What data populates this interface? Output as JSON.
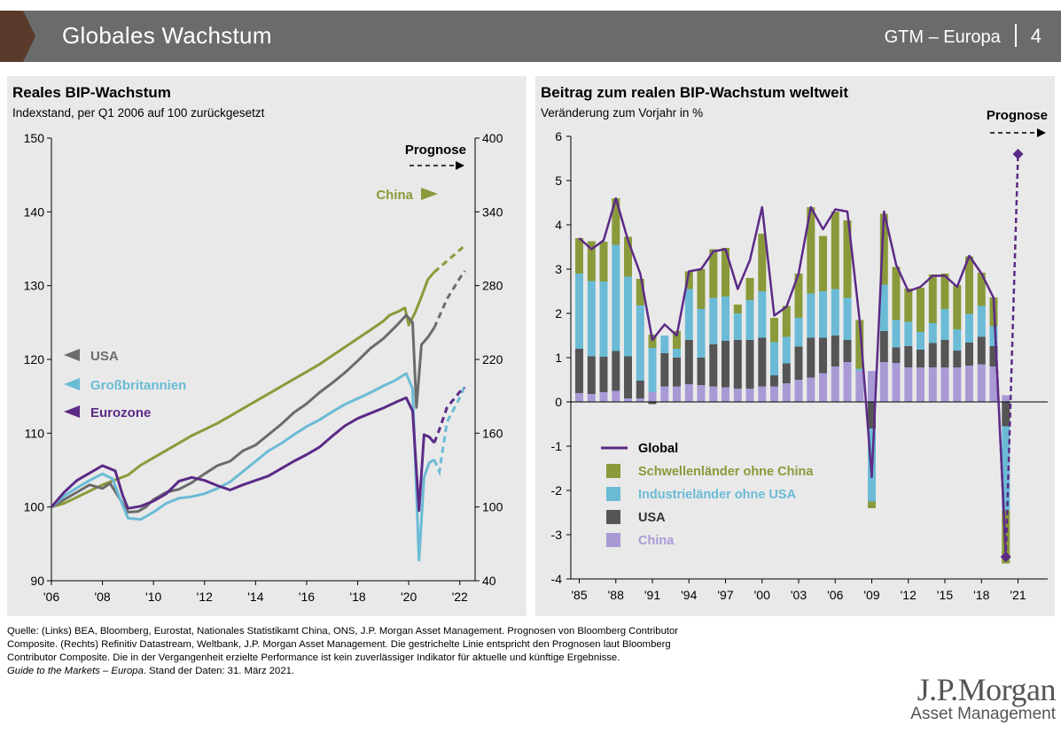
{
  "header": {
    "title": "Globales Wachstum",
    "series": "GTM – Europa",
    "page": "4"
  },
  "left_chart": {
    "title": "Reales BIP-Wachstum",
    "subtitle": "Indexstand, per Q1 2006 auf 100 zurückgesetzt",
    "forecast_label": "Prognose",
    "chart_data": {
      "type": "line",
      "x_ticks": [
        "'06",
        "'08",
        "'10",
        "'12",
        "'14",
        "'16",
        "'18",
        "'20",
        "'22"
      ],
      "x_range": [
        2006,
        2022.6
      ],
      "y_left_range": [
        90,
        150
      ],
      "y_left_ticks": [
        "90",
        "100",
        "110",
        "120",
        "130",
        "140",
        "150"
      ],
      "y_right_range": [
        40,
        400
      ],
      "y_right_ticks": [
        "40",
        "100",
        "160",
        "220",
        "280",
        "340",
        "400"
      ],
      "forecast_start": 2021.0,
      "series": [
        {
          "name": "China",
          "color": "#8a9a3a",
          "axis": "right",
          "label_text": "China",
          "points": [
            [
              2006,
              100
            ],
            [
              2006.5,
              103
            ],
            [
              2007,
              108
            ],
            [
              2007.5,
              113
            ],
            [
              2008,
              118
            ],
            [
              2008.5,
              122
            ],
            [
              2009,
              126
            ],
            [
              2009.5,
              134
            ],
            [
              2010,
              140
            ],
            [
              2010.5,
              146
            ],
            [
              2011,
              152
            ],
            [
              2011.5,
              158
            ],
            [
              2012,
              163
            ],
            [
              2012.5,
              168
            ],
            [
              2013,
              174
            ],
            [
              2013.5,
              180
            ],
            [
              2014,
              186
            ],
            [
              2014.5,
              192
            ],
            [
              2015,
              198
            ],
            [
              2015.5,
              204
            ],
            [
              2016,
              210
            ],
            [
              2016.5,
              216
            ],
            [
              2017,
              223
            ],
            [
              2017.5,
              230
            ],
            [
              2018,
              237
            ],
            [
              2018.5,
              244
            ],
            [
              2019,
              251
            ],
            [
              2019.25,
              256
            ],
            [
              2019.6,
              259
            ],
            [
              2019.85,
              262
            ],
            [
              2020,
              248
            ],
            [
              2020.25,
              258
            ],
            [
              2020.5,
              271
            ],
            [
              2020.75,
              285
            ],
            [
              2021,
              291
            ],
            [
              2021.5,
              300
            ],
            [
              2022,
              309
            ],
            [
              2022.2,
              313
            ]
          ]
        },
        {
          "name": "USA",
          "color": "#6b6b6b",
          "axis": "left",
          "label_text": "USA",
          "points": [
            [
              2006,
              100
            ],
            [
              2006.5,
              101
            ],
            [
              2007,
              102
            ],
            [
              2007.5,
              103
            ],
            [
              2008,
              102.5
            ],
            [
              2008.3,
              103.2
            ],
            [
              2008.7,
              101
            ],
            [
              2009,
              99.3
            ],
            [
              2009.4,
              99.4
            ],
            [
              2009.7,
              100
            ],
            [
              2010,
              101
            ],
            [
              2010.5,
              102
            ],
            [
              2011,
              102.4
            ],
            [
              2011.5,
              103.3
            ],
            [
              2012,
              104.5
            ],
            [
              2012.5,
              105.6
            ],
            [
              2013,
              106.2
            ],
            [
              2013.5,
              107.6
            ],
            [
              2014,
              108.4
            ],
            [
              2014.5,
              109.8
            ],
            [
              2015,
              111.2
            ],
            [
              2015.5,
              112.8
            ],
            [
              2016,
              114
            ],
            [
              2016.5,
              115.5
            ],
            [
              2017,
              116.8
            ],
            [
              2017.5,
              118.2
            ],
            [
              2018,
              119.8
            ],
            [
              2018.5,
              121.5
            ],
            [
              2019,
              122.8
            ],
            [
              2019.5,
              124.5
            ],
            [
              2019.9,
              126
            ],
            [
              2020.15,
              125
            ],
            [
              2020.3,
              113.5
            ],
            [
              2020.5,
              122
            ],
            [
              2020.75,
              123
            ],
            [
              2021,
              124.3
            ],
            [
              2021.5,
              128.2
            ],
            [
              2022,
              131
            ],
            [
              2022.2,
              132
            ]
          ]
        },
        {
          "name": "Großbritannien",
          "color": "#6bbbd6",
          "axis": "left",
          "label_text": "Großbritannien",
          "points": [
            [
              2006,
              100
            ],
            [
              2006.5,
              101.5
            ],
            [
              2007,
              102.6
            ],
            [
              2007.5,
              103.6
            ],
            [
              2008,
              104.5
            ],
            [
              2008.4,
              103.8
            ],
            [
              2008.7,
              101
            ],
            [
              2009,
              98.5
            ],
            [
              2009.5,
              98.3
            ],
            [
              2010,
              99.3
            ],
            [
              2010.5,
              100.5
            ],
            [
              2011,
              101.2
            ],
            [
              2011.5,
              101.4
            ],
            [
              2012,
              101.8
            ],
            [
              2012.5,
              102.5
            ],
            [
              2013,
              103.4
            ],
            [
              2013.5,
              104.8
            ],
            [
              2014,
              106.2
            ],
            [
              2014.5,
              107.6
            ],
            [
              2015,
              108.6
            ],
            [
              2015.5,
              109.8
            ],
            [
              2016,
              110.9
            ],
            [
              2016.5,
              111.8
            ],
            [
              2017,
              112.9
            ],
            [
              2017.5,
              113.9
            ],
            [
              2018,
              114.7
            ],
            [
              2018.5,
              115.5
            ],
            [
              2019,
              116.4
            ],
            [
              2019.5,
              117.2
            ],
            [
              2019.9,
              118.1
            ],
            [
              2020.15,
              116
            ],
            [
              2020.4,
              92.8
            ],
            [
              2020.6,
              104
            ],
            [
              2020.8,
              106
            ],
            [
              2021,
              106.4
            ],
            [
              2021.2,
              104.8
            ],
            [
              2021.5,
              111.5
            ],
            [
              2022,
              114.8
            ],
            [
              2022.2,
              116.5
            ]
          ]
        },
        {
          "name": "Eurozone",
          "color": "#5b2a86",
          "axis": "left",
          "label_text": "Eurozone",
          "points": [
            [
              2006,
              100
            ],
            [
              2006.5,
              102
            ],
            [
              2007,
              103.6
            ],
            [
              2007.5,
              104.6
            ],
            [
              2008,
              105.6
            ],
            [
              2008.5,
              104.9
            ],
            [
              2008.8,
              101.5
            ],
            [
              2009,
              99.8
            ],
            [
              2009.5,
              100.1
            ],
            [
              2010,
              100.8
            ],
            [
              2010.5,
              101.8
            ],
            [
              2011,
              103.5
            ],
            [
              2011.5,
              104
            ],
            [
              2012,
              103.6
            ],
            [
              2012.5,
              102.9
            ],
            [
              2013,
              102.3
            ],
            [
              2013.5,
              103
            ],
            [
              2014,
              103.6
            ],
            [
              2014.5,
              104.2
            ],
            [
              2015,
              105.2
            ],
            [
              2015.5,
              106.2
            ],
            [
              2016,
              107.1
            ],
            [
              2016.5,
              108.1
            ],
            [
              2017,
              109.6
            ],
            [
              2017.5,
              111
            ],
            [
              2018,
              112
            ],
            [
              2018.5,
              112.7
            ],
            [
              2019,
              113.4
            ],
            [
              2019.5,
              114.2
            ],
            [
              2019.9,
              114.8
            ],
            [
              2020.15,
              113
            ],
            [
              2020.4,
              99.5
            ],
            [
              2020.6,
              109.8
            ],
            [
              2020.8,
              109.5
            ],
            [
              2021,
              108.7
            ],
            [
              2021.2,
              110.5
            ],
            [
              2021.5,
              113.5
            ],
            [
              2022,
              115.6
            ],
            [
              2022.2,
              116.2
            ]
          ]
        }
      ]
    }
  },
  "right_chart": {
    "title": "Beitrag zum realen BIP-Wachstum weltweit",
    "subtitle": "Veränderung zum Vorjahr in %",
    "forecast_label": "Prognose",
    "chart_data": {
      "type": "bar",
      "stacked": true,
      "y_range": [
        -4,
        6
      ],
      "y_ticks": [
        "-4",
        "-3",
        "-2",
        "-1",
        "0",
        "1",
        "2",
        "3",
        "4",
        "5",
        "6"
      ],
      "x_ticks": [
        "'85",
        "'88",
        "'91",
        "'94",
        "'97",
        "'00",
        "'03",
        "'06",
        "'09",
        "'12",
        "'15",
        "'18",
        "'21"
      ],
      "years": [
        1985,
        1986,
        1987,
        1988,
        1989,
        1990,
        1991,
        1992,
        1993,
        1994,
        1995,
        1996,
        1997,
        1998,
        1999,
        2000,
        2001,
        2002,
        2003,
        2004,
        2005,
        2006,
        2007,
        2008,
        2009,
        2010,
        2011,
        2012,
        2013,
        2014,
        2015,
        2016,
        2017,
        2018,
        2019,
        2020,
        2021
      ],
      "series": [
        {
          "name": "China",
          "color": "#a99ad6",
          "values": [
            0.2,
            0.18,
            0.22,
            0.25,
            0.08,
            0.08,
            0.22,
            0.35,
            0.35,
            0.4,
            0.38,
            0.35,
            0.33,
            0.3,
            0.3,
            0.35,
            0.35,
            0.42,
            0.5,
            0.55,
            0.65,
            0.8,
            0.9,
            0.7,
            0.7,
            0.9,
            0.88,
            0.78,
            0.78,
            0.78,
            0.78,
            0.78,
            0.82,
            0.85,
            0.8,
            0.15,
            null
          ]
        },
        {
          "name": "USA",
          "color": "#555555",
          "values": [
            1.0,
            0.85,
            0.8,
            0.9,
            0.95,
            0.4,
            -0.05,
            0.75,
            0.65,
            1.0,
            0.62,
            0.95,
            1.05,
            1.1,
            1.1,
            1.1,
            0.25,
            0.45,
            0.75,
            0.9,
            0.8,
            0.7,
            0.5,
            0.0,
            -0.6,
            0.7,
            0.35,
            0.48,
            0.4,
            0.55,
            0.62,
            0.38,
            0.52,
            0.62,
            0.46,
            -0.55,
            null
          ]
        },
        {
          "name": "Industrieländer ohne USA",
          "color": "#6bbbd6",
          "values": [
            1.7,
            1.7,
            1.7,
            2.4,
            1.8,
            1.7,
            1.0,
            0.4,
            0.2,
            1.15,
            1.1,
            1.05,
            1.0,
            0.6,
            0.9,
            1.05,
            0.75,
            0.6,
            0.65,
            1.0,
            1.05,
            1.05,
            0.95,
            0.05,
            -1.65,
            1.05,
            0.62,
            0.55,
            0.4,
            0.45,
            0.7,
            0.48,
            0.65,
            0.7,
            0.45,
            -1.9,
            null
          ]
        },
        {
          "name": "Schwellenländer ohne China",
          "color": "#8a9a3a",
          "values": [
            0.8,
            0.9,
            0.9,
            1.05,
            0.9,
            0.6,
            0.3,
            0.0,
            0.4,
            0.4,
            0.9,
            1.1,
            1.1,
            0.2,
            0.5,
            1.3,
            0.55,
            0.7,
            1.0,
            1.95,
            1.25,
            1.75,
            1.75,
            1.1,
            -0.15,
            1.6,
            1.2,
            0.75,
            1.0,
            1.1,
            0.8,
            1.0,
            1.3,
            0.75,
            0.65,
            -1.2,
            null
          ]
        }
      ],
      "global": {
        "name": "Global",
        "color": "#5b2a86",
        "values": [
          3.7,
          3.45,
          3.65,
          4.6,
          3.65,
          2.9,
          1.4,
          1.75,
          1.5,
          2.95,
          3.0,
          3.4,
          3.45,
          2.55,
          3.2,
          4.4,
          1.95,
          2.15,
          2.9,
          4.4,
          3.9,
          4.35,
          4.3,
          1.85,
          -1.7,
          4.3,
          3.1,
          2.5,
          2.6,
          2.85,
          2.85,
          2.6,
          3.3,
          2.9,
          2.35,
          -3.5,
          5.6
        ]
      },
      "legend": [
        "Global",
        "Schwellenländer ohne China",
        "Industrieländer ohne USA",
        "USA",
        "China"
      ]
    }
  },
  "footer": {
    "source_lines": [
      "Quelle: (Links) BEA, Bloomberg, Eurostat, Nationales Statistikamt China, ONS, J.P. Morgan Asset Management. Prognosen von Bloomberg Contributor",
      "Composite. (Rechts) Refinitiv Datastream, Weltbank, J.P. Morgan Asset Management. Die gestrichelte Linie entspricht den Prognosen laut Bloomberg",
      "Contributor Composite. Die in der Vergangenheit erzielte Performance ist kein zuverlässiger Indikator für aktuelle und künftige Ergebnisse."
    ],
    "guide_italic": "Guide to the Markets – Europa",
    "guide_rest": ". Stand der Daten: 31. März 2021.",
    "logo_line1": "J.P.Morgan",
    "logo_line2": "Asset Management"
  }
}
